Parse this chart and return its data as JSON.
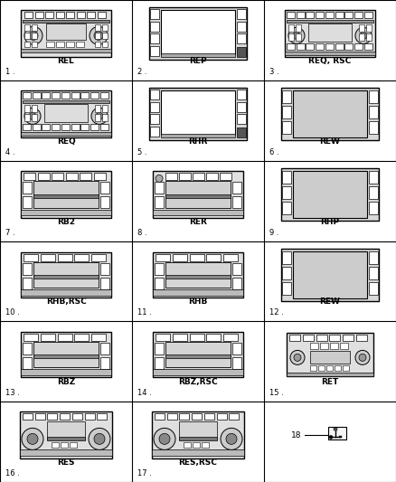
{
  "bg_color": "#ffffff",
  "items": [
    {
      "num": "1",
      "label": "REL",
      "col": 0,
      "row": 0,
      "type": "type_REL"
    },
    {
      "num": "2",
      "label": "REP",
      "col": 1,
      "row": 0,
      "type": "type_REP"
    },
    {
      "num": "3",
      "label": "REQ, RSC",
      "col": 2,
      "row": 0,
      "type": "type_REQ_RSC"
    },
    {
      "num": "4",
      "label": "REQ",
      "col": 0,
      "row": 1,
      "type": "type_REQ"
    },
    {
      "num": "5",
      "label": "RHR",
      "col": 1,
      "row": 1,
      "type": "type_REP"
    },
    {
      "num": "6",
      "label": "REW",
      "col": 2,
      "row": 1,
      "type": "type_REW"
    },
    {
      "num": "7",
      "label": "RB2",
      "col": 0,
      "row": 2,
      "type": "type_RB2"
    },
    {
      "num": "8",
      "label": "RER",
      "col": 1,
      "row": 2,
      "type": "type_RER"
    },
    {
      "num": "9",
      "label": "RHP",
      "col": 2,
      "row": 2,
      "type": "type_REW"
    },
    {
      "num": "10",
      "label": "RHB,RSC",
      "col": 0,
      "row": 3,
      "type": "type_RHB"
    },
    {
      "num": "11",
      "label": "RHB",
      "col": 1,
      "row": 3,
      "type": "type_RHB"
    },
    {
      "num": "12",
      "label": "REW",
      "col": 2,
      "row": 3,
      "type": "type_REW"
    },
    {
      "num": "13",
      "label": "RBZ",
      "col": 0,
      "row": 4,
      "type": "type_RHB"
    },
    {
      "num": "14",
      "label": "RBZ,RSC",
      "col": 1,
      "row": 4,
      "type": "type_RHB"
    },
    {
      "num": "15",
      "label": "RET",
      "col": 2,
      "row": 4,
      "type": "type_RET"
    },
    {
      "num": "16",
      "label": "RES",
      "col": 0,
      "row": 5,
      "type": "type_RES"
    },
    {
      "num": "17",
      "label": "RES,RSC",
      "col": 1,
      "row": 5,
      "type": "type_RES"
    },
    {
      "num": "18",
      "label": "",
      "col": 2,
      "row": 5,
      "type": "type_USB"
    }
  ]
}
